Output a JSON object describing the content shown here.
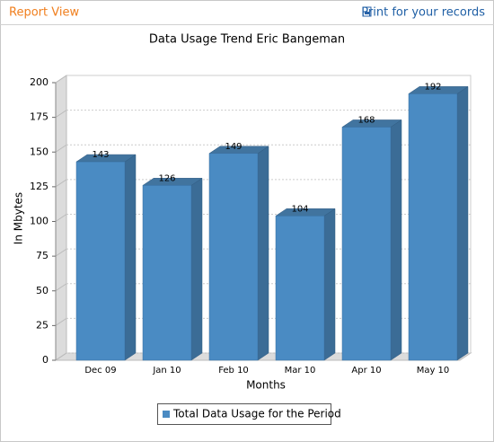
{
  "header": {
    "title": "Report View",
    "print_link": "Print for your records"
  },
  "chart_data": {
    "type": "bar",
    "title": "Data Usage Trend Eric Bangeman",
    "x_label": "Months",
    "y_label": "In Mbytes",
    "categories": [
      "Dec 09",
      "Jan 10",
      "Feb 10",
      "Mar 10",
      "Apr 10",
      "May 10"
    ],
    "series": [
      {
        "name": "Total Data Usage for the Period",
        "color": "#4a8bc3",
        "values": [
          143,
          126,
          149,
          104,
          168,
          192
        ]
      }
    ],
    "ylim": [
      0,
      200
    ],
    "yticks": [
      0,
      25,
      50,
      75,
      100,
      125,
      150,
      175,
      200
    ],
    "grid": true
  }
}
